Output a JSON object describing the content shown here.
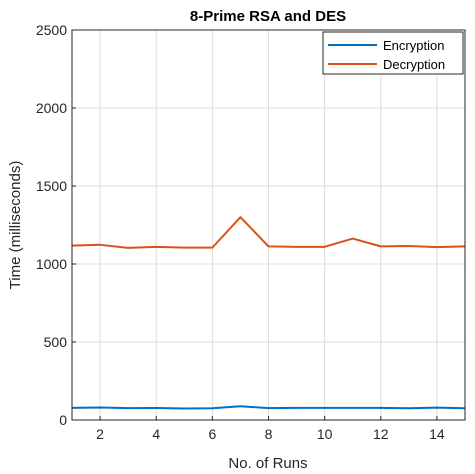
{
  "chart_data": {
    "type": "line",
    "title": "8-Prime RSA and DES",
    "xlabel": "No. of Runs",
    "ylabel": "Time (milliseconds)",
    "xlim": [
      1,
      15
    ],
    "ylim": [
      0,
      2500
    ],
    "xticks": [
      2,
      4,
      6,
      8,
      10,
      12,
      14
    ],
    "yticks": [
      0,
      500,
      1000,
      1500,
      2000,
      2500
    ],
    "x_tick_labels": [
      "2",
      "4",
      "6",
      "8",
      "10",
      "12",
      "14"
    ],
    "y_tick_labels": [
      "0",
      "500",
      "1000",
      "1500",
      "2000",
      "2500"
    ],
    "grid": true,
    "legend_position": "top-right",
    "x": [
      1,
      2,
      3,
      4,
      5,
      6,
      7,
      8,
      9,
      10,
      11,
      12,
      13,
      14,
      15
    ],
    "series": [
      {
        "name": "Encryption",
        "color": "#0072BD",
        "values": [
          78,
          80,
          76,
          77,
          74,
          75,
          88,
          76,
          78,
          78,
          78,
          78,
          75,
          79,
          75
        ]
      },
      {
        "name": "Decryption",
        "color": "#D95319",
        "values": [
          1118,
          1123,
          1103,
          1110,
          1105,
          1105,
          1300,
          1113,
          1110,
          1110,
          1163,
          1113,
          1115,
          1108,
          1113
        ]
      }
    ]
  }
}
